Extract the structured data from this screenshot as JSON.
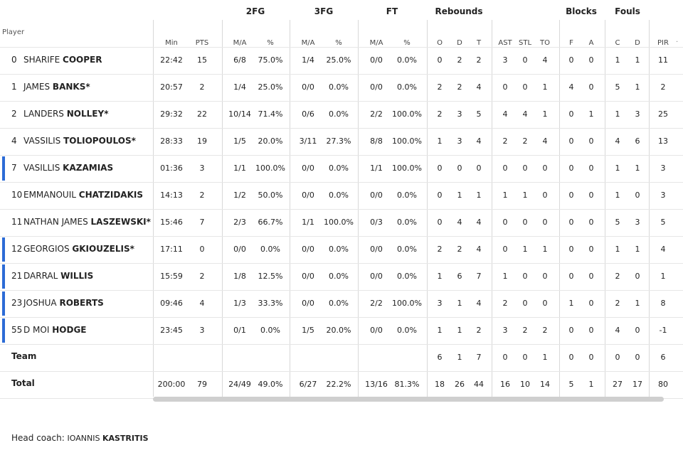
{
  "header": {
    "player_label": "Player",
    "groups": [
      "2FG",
      "3FG",
      "FT",
      "Rebounds",
      "Blocks",
      "Fouls"
    ],
    "sub": [
      "Min",
      "PTS",
      "M/A",
      "%",
      "M/A",
      "%",
      "M/A",
      "%",
      "O",
      "D",
      "T",
      "AST",
      "STL",
      "TO",
      "F",
      "A",
      "C",
      "D",
      "PIR"
    ]
  },
  "players": [
    {
      "num": "0",
      "first": "SHARIFE",
      "last": "COOPER",
      "marked": false,
      "stats": [
        "22:42",
        "15",
        "6/8",
        "75.0%",
        "1/4",
        "25.0%",
        "0/0",
        "0.0%",
        "0",
        "2",
        "2",
        "3",
        "0",
        "4",
        "0",
        "0",
        "1",
        "1",
        "11"
      ]
    },
    {
      "num": "1",
      "first": "JAMES",
      "last": "BANKS*",
      "marked": false,
      "stats": [
        "20:57",
        "2",
        "1/4",
        "25.0%",
        "0/0",
        "0.0%",
        "0/0",
        "0.0%",
        "2",
        "2",
        "4",
        "0",
        "0",
        "1",
        "4",
        "0",
        "5",
        "1",
        "2"
      ]
    },
    {
      "num": "2",
      "first": "LANDERS",
      "last": "NOLLEY*",
      "marked": false,
      "stats": [
        "29:32",
        "22",
        "10/14",
        "71.4%",
        "0/6",
        "0.0%",
        "2/2",
        "100.0%",
        "2",
        "3",
        "5",
        "4",
        "4",
        "1",
        "0",
        "1",
        "1",
        "3",
        "25"
      ]
    },
    {
      "num": "4",
      "first": "VASSILIS",
      "last": "TOLIOPOULOS*",
      "marked": false,
      "stats": [
        "28:33",
        "19",
        "1/5",
        "20.0%",
        "3/11",
        "27.3%",
        "8/8",
        "100.0%",
        "1",
        "3",
        "4",
        "2",
        "2",
        "4",
        "0",
        "0",
        "4",
        "6",
        "13"
      ]
    },
    {
      "num": "7",
      "first": "VASILLIS",
      "last": "KAZAMIAS",
      "marked": true,
      "stats": [
        "01:36",
        "3",
        "1/1",
        "100.0%",
        "0/0",
        "0.0%",
        "1/1",
        "100.0%",
        "0",
        "0",
        "0",
        "0",
        "0",
        "0",
        "0",
        "0",
        "1",
        "1",
        "3"
      ]
    },
    {
      "num": "10",
      "first": "EMMANOUIL",
      "last": "CHATZIDAKIS",
      "marked": false,
      "stats": [
        "14:13",
        "2",
        "1/2",
        "50.0%",
        "0/0",
        "0.0%",
        "0/0",
        "0.0%",
        "0",
        "1",
        "1",
        "1",
        "1",
        "0",
        "0",
        "0",
        "1",
        "0",
        "3"
      ]
    },
    {
      "num": "11",
      "first": "NATHAN JAMES",
      "last": "LASZEWSKI*",
      "marked": false,
      "stats": [
        "15:46",
        "7",
        "2/3",
        "66.7%",
        "1/1",
        "100.0%",
        "0/3",
        "0.0%",
        "0",
        "4",
        "4",
        "0",
        "0",
        "0",
        "0",
        "0",
        "5",
        "3",
        "5"
      ]
    },
    {
      "num": "12",
      "first": "GEORGIOS",
      "last": "GKIOUZELIS*",
      "marked": true,
      "stats": [
        "17:11",
        "0",
        "0/0",
        "0.0%",
        "0/0",
        "0.0%",
        "0/0",
        "0.0%",
        "2",
        "2",
        "4",
        "0",
        "1",
        "1",
        "0",
        "0",
        "1",
        "1",
        "4"
      ]
    },
    {
      "num": "21",
      "first": "DARRAL",
      "last": "WILLIS",
      "marked": true,
      "stats": [
        "15:59",
        "2",
        "1/8",
        "12.5%",
        "0/0",
        "0.0%",
        "0/0",
        "0.0%",
        "1",
        "6",
        "7",
        "1",
        "0",
        "0",
        "0",
        "0",
        "2",
        "0",
        "1"
      ]
    },
    {
      "num": "23",
      "first": "JOSHUA",
      "last": "ROBERTS",
      "marked": true,
      "stats": [
        "09:46",
        "4",
        "1/3",
        "33.3%",
        "0/0",
        "0.0%",
        "2/2",
        "100.0%",
        "3",
        "1",
        "4",
        "2",
        "0",
        "0",
        "1",
        "0",
        "2",
        "1",
        "8"
      ]
    },
    {
      "num": "55",
      "first": "D MOI",
      "last": "HODGE",
      "marked": true,
      "stats": [
        "23:45",
        "3",
        "0/1",
        "0.0%",
        "1/5",
        "20.0%",
        "0/0",
        "0.0%",
        "1",
        "1",
        "2",
        "3",
        "2",
        "2",
        "0",
        "0",
        "4",
        "0",
        "-1"
      ]
    }
  ],
  "team_row": {
    "label": "Team",
    "stats": [
      "",
      "",
      "",
      "",
      "",
      "",
      "",
      "",
      "6",
      "1",
      "7",
      "0",
      "0",
      "1",
      "0",
      "0",
      "0",
      "0",
      "6"
    ]
  },
  "total_row": {
    "label": "Total",
    "stats": [
      "200:00",
      "79",
      "24/49",
      "49.0%",
      "6/27",
      "22.2%",
      "13/16",
      "81.3%",
      "18",
      "26",
      "44",
      "16",
      "10",
      "14",
      "5",
      "1",
      "27",
      "17",
      "80"
    ]
  },
  "coach": {
    "label": "Head coach: ",
    "first": "IOANNIS",
    "last": "KASTRITIS"
  },
  "colors": {
    "accent_marker": "#2c6bd6",
    "scrollbar": "#cfcfcf"
  },
  "scroll_hint": "·"
}
